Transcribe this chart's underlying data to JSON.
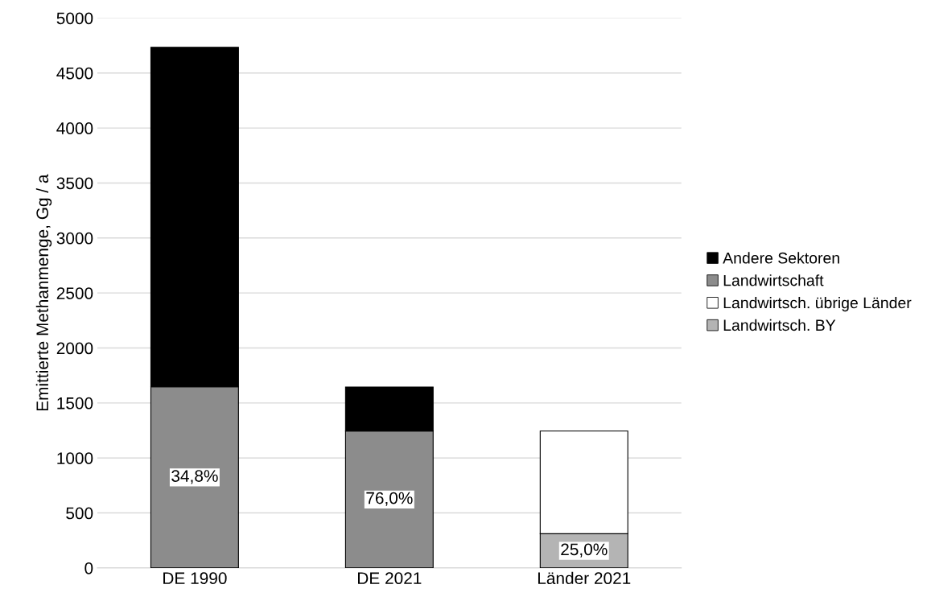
{
  "chart_data": {
    "type": "bar",
    "stacked": true,
    "ylabel": "Emittierte Methanmenge, Gg / a",
    "categories": [
      "DE 1990",
      "DE 2021",
      "Länder 2021"
    ],
    "series": [
      {
        "name": "Landwirtsch. BY",
        "color": "#b4b4b4",
        "values": [
          null,
          null,
          311
        ]
      },
      {
        "name": "Landwirtsch. übrige Länder",
        "color": "#ffffff",
        "values": [
          null,
          null,
          934
        ]
      },
      {
        "name": "Landwirtschaft",
        "color": "#8c8c8c",
        "values": [
          1647,
          1245,
          null
        ]
      },
      {
        "name": "Andere Sektoren",
        "color": "#000000",
        "values": [
          3087,
          400,
          null
        ]
      }
    ],
    "annotations": [
      "34,8%",
      "76,0%",
      "25,0%"
    ],
    "ylim": [
      0,
      5000
    ],
    "yticks": [
      0,
      500,
      1000,
      1500,
      2000,
      2500,
      3000,
      3500,
      4000,
      4500,
      5000
    ],
    "grid": "y",
    "legend": "right"
  }
}
